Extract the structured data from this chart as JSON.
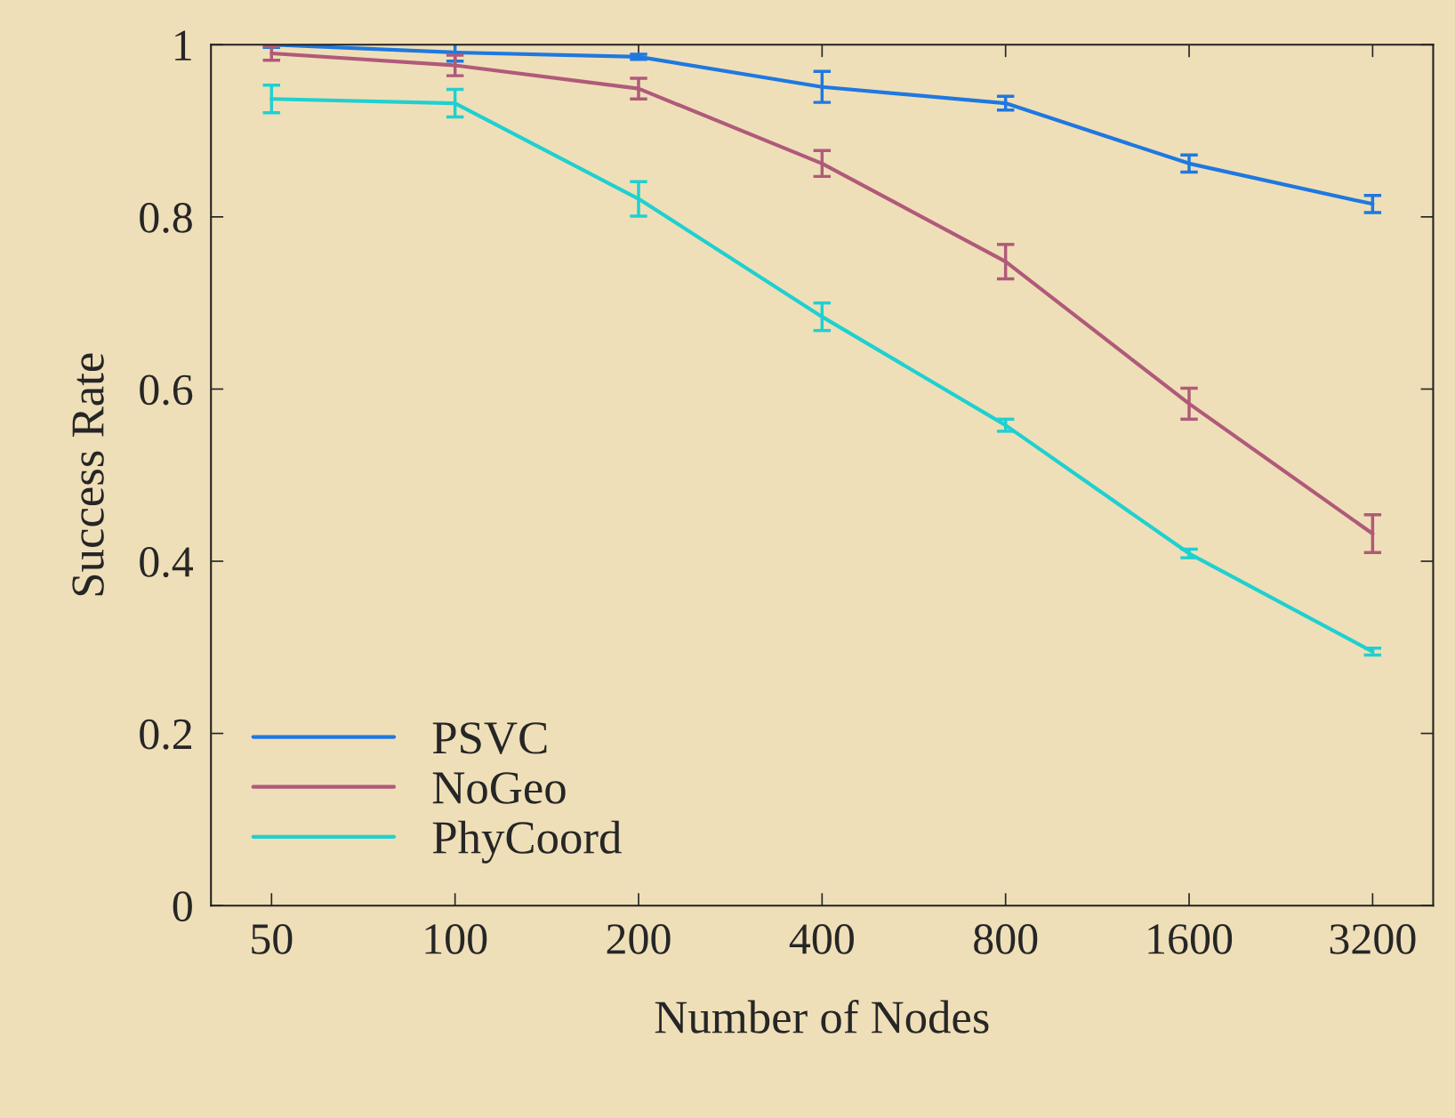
{
  "chart_data": {
    "type": "line",
    "xlabel": "Number of Nodes",
    "ylabel": "Success Rate",
    "categories": [
      "50",
      "100",
      "200",
      "400",
      "800",
      "1600",
      "3200"
    ],
    "series": [
      {
        "name": "PSVC",
        "color": "#1f78e0",
        "values": [
          1.0,
          0.991,
          0.986,
          0.951,
          0.932,
          0.862,
          0.815
        ],
        "errors": [
          0.003,
          0.01,
          0.003,
          0.018,
          0.008,
          0.01,
          0.01
        ]
      },
      {
        "name": "NoGeo",
        "color": "#b05a7a",
        "values": [
          0.99,
          0.976,
          0.949,
          0.862,
          0.748,
          0.583,
          0.432
        ],
        "errors": [
          0.008,
          0.012,
          0.012,
          0.015,
          0.02,
          0.018,
          0.022
        ]
      },
      {
        "name": "PhyCoord",
        "color": "#20d0d0",
        "values": [
          0.937,
          0.932,
          0.821,
          0.684,
          0.558,
          0.409,
          0.295
        ],
        "errors": [
          0.016,
          0.016,
          0.02,
          0.016,
          0.007,
          0.005,
          0.004
        ]
      }
    ],
    "ylim": [
      0,
      1.0
    ],
    "yticks": [
      0,
      0.2,
      0.4,
      0.6,
      0.8,
      1
    ],
    "legend": "bottom left",
    "grid": false,
    "marker": "none",
    "line_style": "solid"
  }
}
